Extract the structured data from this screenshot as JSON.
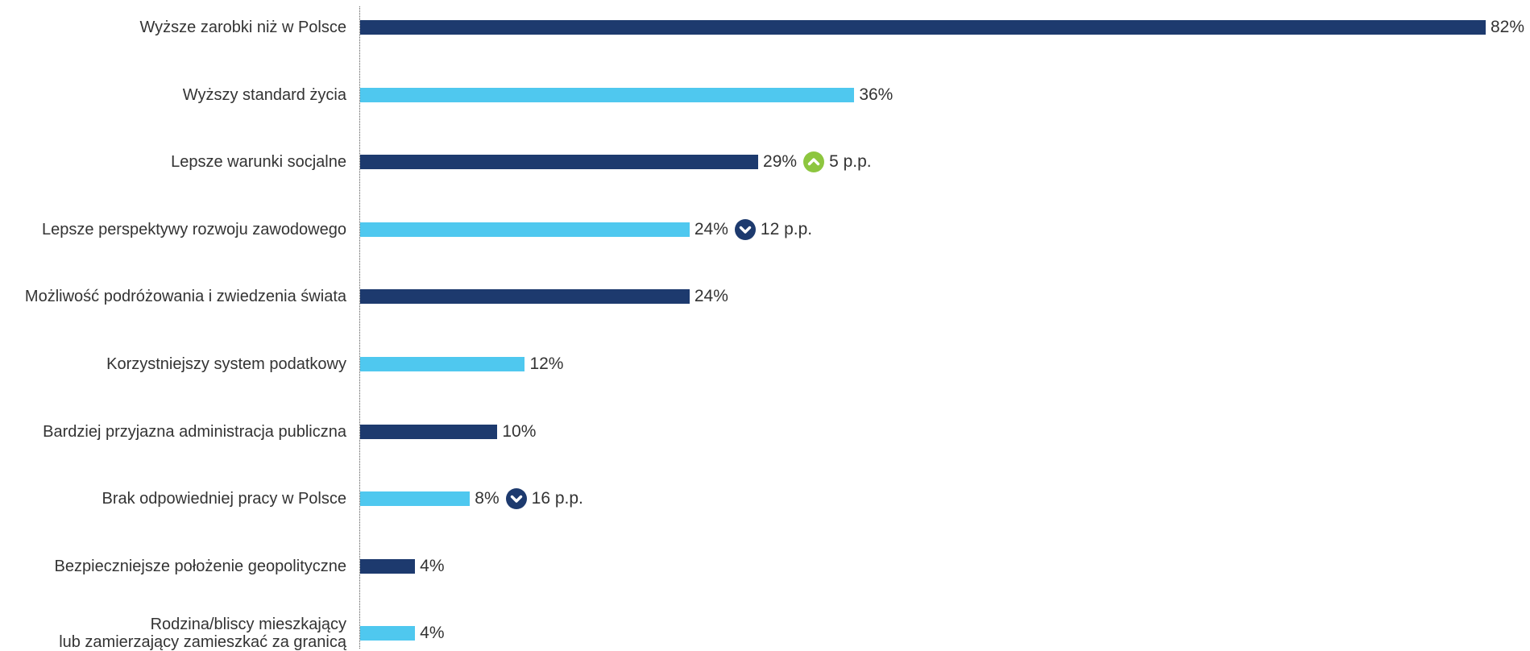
{
  "chart_data": {
    "type": "bar",
    "orientation": "horizontal",
    "xlim": [
      0,
      82
    ],
    "grid": false,
    "colors": {
      "dark": "#1d3a6e",
      "light": "#4fc8ef",
      "up": "#8dc63f",
      "down": "#1d3a6e"
    },
    "categories": [
      "Wyższe zarobki niż w Polsce",
      "Wyższy standard życia",
      "Lepsze warunki socjalne",
      "Lepsze perspektywy rozwoju zawodowego",
      "Możliwość podróżowania i zwiedzenia świata",
      "Korzystniejszy system podatkowy",
      "Bardziej przyjazna administracja publiczna",
      "Brak odpowiedniej pracy w Polsce",
      "Bezpieczniejsze położenie geopolityczne",
      "Rodzina/bliscy mieszkający\nlub zamierzający zamieszkać za granicą"
    ],
    "values": [
      82,
      36,
      29,
      24,
      24,
      12,
      10,
      8,
      4,
      4
    ],
    "value_labels": [
      "82%",
      "36%",
      "29%",
      "24%",
      "24%",
      "12%",
      "10%",
      "8%",
      "4%",
      "4%"
    ],
    "bar_colors": [
      "dark",
      "light",
      "dark",
      "light",
      "dark",
      "light",
      "dark",
      "light",
      "dark",
      "light"
    ],
    "changes": [
      null,
      null,
      {
        "direction": "up",
        "text": "5 p.p."
      },
      {
        "direction": "down",
        "text": "12 p.p."
      },
      null,
      null,
      null,
      {
        "direction": "down",
        "text": "16 p.p."
      },
      null,
      null
    ]
  }
}
